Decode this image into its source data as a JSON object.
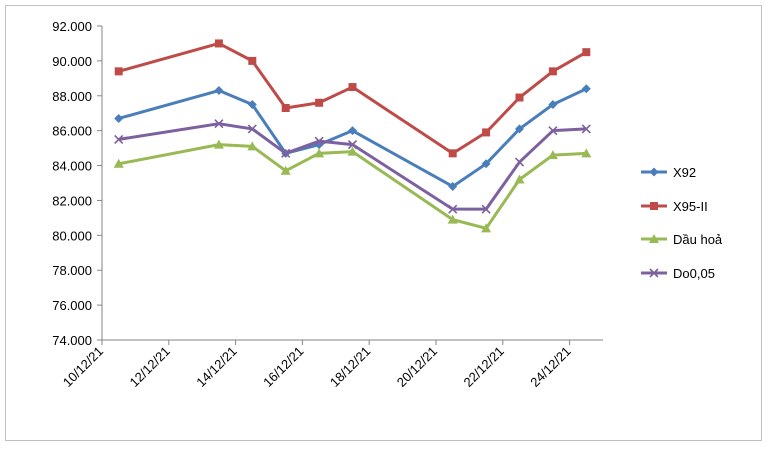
{
  "chart_data": {
    "type": "line",
    "x": [
      "10/12/21",
      "13/12/21",
      "14/12/21",
      "15/12/21",
      "16/12/21",
      "17/12/21",
      "20/12/21",
      "21/12/21",
      "22/12/21",
      "23/12/21",
      "24/12/21"
    ],
    "xlim": [
      "10/12/21",
      "25/12/21"
    ],
    "xticks": [
      "10/12/21",
      "12/12/21",
      "14/12/21",
      "16/12/21",
      "18/12/21",
      "20/12/21",
      "22/12/21",
      "24/12/21"
    ],
    "ylim": [
      74000,
      92000
    ],
    "yticks": [
      {
        "value": 74000,
        "label": "74.000"
      },
      {
        "value": 76000,
        "label": "76.000"
      },
      {
        "value": 78000,
        "label": "78.000"
      },
      {
        "value": 80000,
        "label": "80.000"
      },
      {
        "value": 82000,
        "label": "82.000"
      },
      {
        "value": 84000,
        "label": "84.000"
      },
      {
        "value": 86000,
        "label": "86.000"
      },
      {
        "value": 88000,
        "label": "88.000"
      },
      {
        "value": 90000,
        "label": "90.000"
      },
      {
        "value": 92000,
        "label": "92.000"
      }
    ],
    "grid": false,
    "legend": "right",
    "series": [
      {
        "name": "X92",
        "color": "#4a7ebb",
        "marker": "diamond",
        "values": [
          86700,
          88300,
          87500,
          84700,
          85200,
          86000,
          82800,
          84100,
          86100,
          87500,
          88400
        ]
      },
      {
        "name": "X95-II",
        "color": "#be4b48",
        "marker": "square",
        "values": [
          89400,
          91000,
          90000,
          87300,
          87600,
          88500,
          84700,
          85900,
          87900,
          89400,
          90500
        ]
      },
      {
        "name": "Dầu hoả",
        "color": "#98b954",
        "marker": "triangle",
        "values": [
          84100,
          85200,
          85100,
          83700,
          84700,
          84800,
          80900,
          80400,
          83200,
          84600,
          84700
        ]
      },
      {
        "name": "Do0,05",
        "color": "#7d60a0",
        "marker": "x",
        "values": [
          85500,
          86400,
          86100,
          84700,
          85400,
          85200,
          81500,
          81500,
          84200,
          86000,
          86100
        ]
      }
    ]
  }
}
